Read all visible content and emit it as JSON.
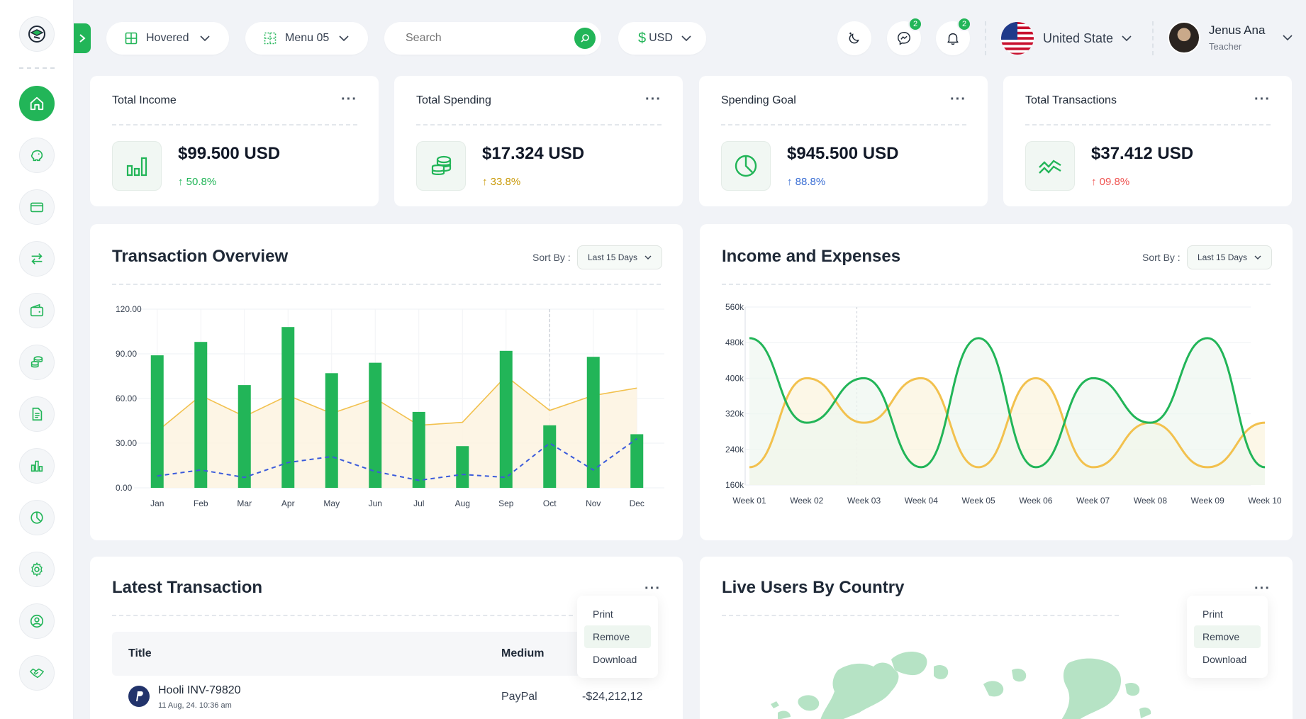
{
  "topbar": {
    "hovered_label": "Hovered",
    "menu_label": "Menu 05",
    "search_placeholder": "Search",
    "currency": "USD",
    "messages_count": "2",
    "notifications_count": "2",
    "country": "United State",
    "user_name": "Jenus Ana",
    "user_role": "Teacher"
  },
  "stats": [
    {
      "title": "Total Income",
      "value": "$99.500 USD",
      "change": "50.8%",
      "color": "#22b558"
    },
    {
      "title": "Total Spending",
      "value": "$17.324 USD",
      "change": "33.8%",
      "color": "#c99a0a"
    },
    {
      "title": "Spending Goal",
      "value": "$945.500 USD",
      "change": "88.8%",
      "color": "#3b6fd4"
    },
    {
      "title": "Total Transactions",
      "value": "$37.412 USD",
      "change": "09.8%",
      "color": "#ef5350"
    }
  ],
  "transaction_overview": {
    "title": "Transaction Overview",
    "sort_label": "Sort By :",
    "sort_value": "Last 15 Days"
  },
  "income_expenses": {
    "title": "Income and Expenses",
    "sort_label": "Sort By :",
    "sort_value": "Last 15 Days"
  },
  "latest_transaction": {
    "title": "Latest Transaction",
    "col_title": "Title",
    "col_medium": "Medium",
    "row_name": "Hooli INV-79820",
    "row_date": "11 Aug, 24. 10:36 am",
    "row_medium": "PayPal",
    "row_amount": "-$24,212,12"
  },
  "live_users": {
    "title": "Live Users By Country"
  },
  "menu_items": [
    "Print",
    "Remove",
    "Download"
  ],
  "colors": {
    "accent": "#22b558",
    "yellow": "#f2c14e",
    "blue": "#3b5bdb"
  },
  "chart_data": [
    {
      "type": "bar",
      "categories": [
        "Jan",
        "Feb",
        "Mar",
        "Apr",
        "May",
        "Jun",
        "Jul",
        "Aug",
        "Sep",
        "Oct",
        "Nov",
        "Dec"
      ],
      "ylim": [
        0,
        120
      ],
      "yticks": [
        "0.00",
        "30.00",
        "60.00",
        "90.00",
        "120.00"
      ],
      "series": [
        {
          "type": "bar",
          "values": [
            89,
            98,
            69,
            108,
            77,
            84,
            51,
            28,
            92,
            42,
            88,
            36
          ]
        },
        {
          "type": "area",
          "values": [
            38,
            62,
            48,
            62,
            50,
            60,
            42,
            44,
            75,
            52,
            62,
            67
          ]
        },
        {
          "type": "line-dashed",
          "values": [
            8,
            12,
            7,
            17,
            21,
            11,
            5,
            9,
            7,
            30,
            12,
            33
          ]
        }
      ]
    },
    {
      "type": "line",
      "categories": [
        "Week 01",
        "Week 02",
        "Week 03",
        "Week 04",
        "Week 05",
        "Week 06",
        "Week 07",
        "Week 08",
        "Week 09",
        "Week 10"
      ],
      "ylim": [
        160,
        560
      ],
      "yticks": [
        "160k",
        "240k",
        "320k",
        "400k",
        "480k",
        "560k"
      ],
      "series": [
        {
          "color": "#22b558",
          "values": [
            490,
            300,
            400,
            200,
            490,
            200,
            400,
            300,
            490,
            200
          ]
        },
        {
          "color": "#f2c14e",
          "values": [
            200,
            400,
            300,
            400,
            200,
            400,
            200,
            300,
            200,
            300
          ]
        }
      ]
    }
  ]
}
